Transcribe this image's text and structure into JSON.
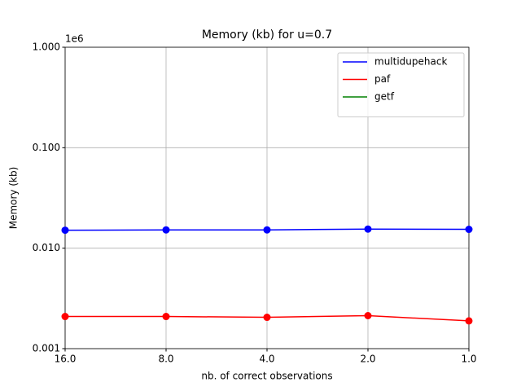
{
  "chart_data": {
    "type": "line",
    "title": "Memory (kb) for u=0.7",
    "xlabel": "nb. of correct observations",
    "ylabel": "Memory (kb)",
    "y_offset_label": "1e6",
    "x": [
      16,
      8,
      4,
      2,
      1
    ],
    "series": [
      {
        "name": "multidupehack",
        "color": "#0000ff",
        "values": [
          0.0151,
          0.0152,
          0.0152,
          0.0155,
          0.0154
        ]
      },
      {
        "name": "paf",
        "color": "#ff0000",
        "values": [
          0.00209,
          0.00209,
          0.00205,
          0.00213,
          0.00189
        ]
      },
      {
        "name": "getf",
        "color": "#008000",
        "values": [
          null,
          null,
          null,
          null,
          null
        ]
      }
    ],
    "xscale": "log",
    "yscale": "log",
    "xlim": [
      16,
      1
    ],
    "ylim": [
      0.001,
      1
    ],
    "xticks": [
      {
        "value": 16,
        "label": "16.0"
      },
      {
        "value": 8,
        "label": "8.0"
      },
      {
        "value": 4,
        "label": "4.0"
      },
      {
        "value": 2,
        "label": "2.0"
      },
      {
        "value": 1,
        "label": "1.0"
      }
    ],
    "yticks": [
      {
        "value": 0.001,
        "label": "0.001"
      },
      {
        "value": 0.01,
        "label": "0.010"
      },
      {
        "value": 0.1,
        "label": "0.100"
      },
      {
        "value": 1,
        "label": "1.000"
      }
    ],
    "grid": true,
    "legend": "upper right"
  }
}
